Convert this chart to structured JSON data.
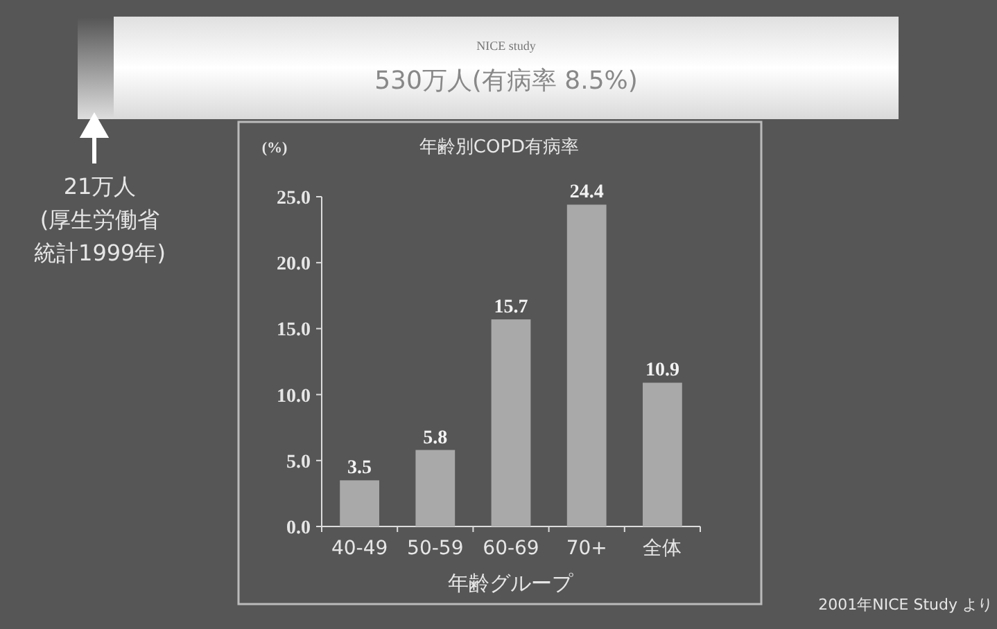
{
  "chart_data": {
    "type": "bar",
    "title": "年齢別COPD有病率",
    "ylabel": "(%)",
    "xlabel": "年齢グループ",
    "categories": [
      "40-49",
      "50-59",
      "60-69",
      "70+",
      "全体"
    ],
    "values": [
      3.5,
      5.8,
      15.7,
      24.4,
      10.9
    ],
    "color": "#a9a9a9",
    "ylim": [
      0,
      25
    ],
    "yticks": [
      {
        "value": 0,
        "label": "0.0"
      },
      {
        "value": 5,
        "label": "5.0"
      },
      {
        "value": 10,
        "label": "10.0"
      },
      {
        "value": 15,
        "label": "15.0"
      },
      {
        "value": 20,
        "label": "20.0"
      },
      {
        "value": 25,
        "label": "25.0"
      }
    ],
    "data_labels": true,
    "grid": false,
    "annotations": [
      "NICE study",
      "530万人(有病率 8.5%)",
      "2001年NICE Study より",
      "21万人",
      "(厚生労働省",
      "統計1999年)"
    ]
  }
}
